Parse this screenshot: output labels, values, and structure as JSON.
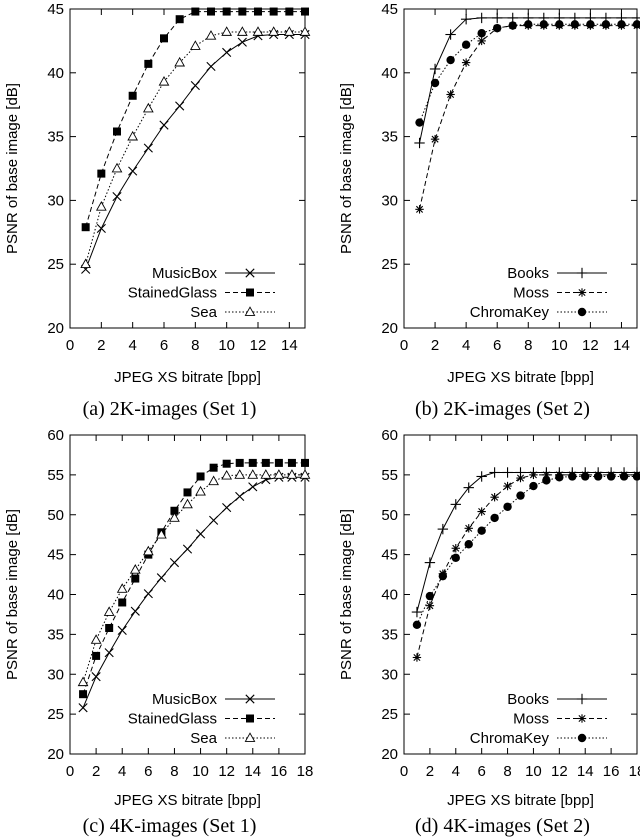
{
  "chart_data": [
    {
      "type": "line",
      "caption": "(a) 2K-images (Set 1)",
      "xlabel": "JPEG XS bitrate [bpp]",
      "ylabel": "PSNR of base image [dB]",
      "xlim": [
        0,
        15
      ],
      "ylim": [
        20,
        45
      ],
      "xticks": [
        0,
        2,
        4,
        6,
        8,
        10,
        12,
        14
      ],
      "yticks": [
        20,
        25,
        30,
        35,
        40,
        45
      ],
      "legend": "bottom-right",
      "series": [
        {
          "name": "MusicBox",
          "marker": "x",
          "dash": "solid",
          "x": [
            1,
            2,
            3,
            4,
            5,
            6,
            7,
            8,
            9,
            10,
            11,
            12,
            13,
            14,
            15
          ],
          "y": [
            24.6,
            27.8,
            30.3,
            32.3,
            34.1,
            35.9,
            37.4,
            39.0,
            40.5,
            41.6,
            42.4,
            42.9,
            43.0,
            43.0,
            43.0
          ]
        },
        {
          "name": "StainedGlass",
          "marker": "square",
          "dash": "dashed",
          "x": [
            1,
            2,
            3,
            4,
            5,
            6,
            7,
            8,
            9,
            10,
            11,
            12,
            13,
            14,
            15
          ],
          "y": [
            27.9,
            32.1,
            35.4,
            38.2,
            40.7,
            42.7,
            44.2,
            44.8,
            44.8,
            44.8,
            44.8,
            44.8,
            44.8,
            44.8,
            44.8
          ]
        },
        {
          "name": "Sea",
          "marker": "triangle",
          "dash": "dotted",
          "x": [
            1,
            2,
            3,
            4,
            5,
            6,
            7,
            8,
            9,
            10,
            11,
            12,
            13,
            14,
            15
          ],
          "y": [
            25.0,
            29.5,
            32.5,
            35.0,
            37.2,
            39.3,
            40.8,
            42.1,
            42.9,
            43.2,
            43.2,
            43.2,
            43.2,
            43.2,
            43.2
          ]
        }
      ]
    },
    {
      "type": "line",
      "caption": "(b) 2K-images (Set 2)",
      "xlabel": "JPEG XS bitrate [bpp]",
      "ylabel": "PSNR of base image [dB]",
      "xlim": [
        0,
        15
      ],
      "ylim": [
        20,
        45
      ],
      "xticks": [
        0,
        2,
        4,
        6,
        8,
        10,
        12,
        14
      ],
      "yticks": [
        20,
        25,
        30,
        35,
        40,
        45
      ],
      "legend": "bottom-right",
      "series": [
        {
          "name": "Books",
          "marker": "plus",
          "dash": "solid",
          "x": [
            1,
            2,
            3,
            4,
            5,
            6,
            7,
            8,
            9,
            10,
            11,
            12,
            13,
            14,
            15
          ],
          "y": [
            34.5,
            40.3,
            43.0,
            44.2,
            44.3,
            44.3,
            44.3,
            44.3,
            44.3,
            44.3,
            44.3,
            44.3,
            44.3,
            44.3,
            44.3
          ]
        },
        {
          "name": "Moss",
          "marker": "asterisk",
          "dash": "dashed",
          "x": [
            1,
            2,
            3,
            4,
            5,
            6,
            7,
            8,
            9,
            10,
            11,
            12,
            13,
            14,
            15
          ],
          "y": [
            29.3,
            34.8,
            38.3,
            40.8,
            42.5,
            43.5,
            43.7,
            43.7,
            43.7,
            43.7,
            43.7,
            43.7,
            43.7,
            43.7,
            43.7
          ]
        },
        {
          "name": "ChromaKey",
          "marker": "circle",
          "dash": "dotted",
          "x": [
            1,
            2,
            3,
            4,
            5,
            6,
            7,
            8,
            9,
            10,
            11,
            12,
            13,
            14,
            15
          ],
          "y": [
            36.1,
            39.2,
            41.0,
            42.2,
            43.1,
            43.5,
            43.7,
            43.8,
            43.8,
            43.8,
            43.8,
            43.8,
            43.8,
            43.8,
            43.8
          ]
        }
      ]
    },
    {
      "type": "line",
      "caption": "(c) 4K-images (Set 1)",
      "xlabel": "JPEG XS bitrate [bpp]",
      "ylabel": "PSNR of base image [dB]",
      "xlim": [
        0,
        18
      ],
      "ylim": [
        20,
        60
      ],
      "xticks": [
        0,
        2,
        4,
        6,
        8,
        10,
        12,
        14,
        16,
        18
      ],
      "yticks": [
        20,
        25,
        30,
        35,
        40,
        45,
        50,
        55,
        60
      ],
      "legend": "bottom-right",
      "series": [
        {
          "name": "MusicBox",
          "marker": "x",
          "dash": "solid",
          "x": [
            1,
            2,
            3,
            4,
            5,
            6,
            7,
            8,
            9,
            10,
            11,
            12,
            13,
            14,
            15,
            16,
            17,
            18
          ],
          "y": [
            25.8,
            29.7,
            32.7,
            35.5,
            37.9,
            40.1,
            42.1,
            44.0,
            45.7,
            47.6,
            49.3,
            50.9,
            52.3,
            53.5,
            54.4,
            54.7,
            54.7,
            54.7
          ]
        },
        {
          "name": "StainedGlass",
          "marker": "square",
          "dash": "dashed",
          "x": [
            1,
            2,
            3,
            4,
            5,
            6,
            7,
            8,
            9,
            10,
            11,
            12,
            13,
            14,
            15,
            16,
            17,
            18
          ],
          "y": [
            27.5,
            32.3,
            35.8,
            39.0,
            42.0,
            45.0,
            47.8,
            50.5,
            52.8,
            54.8,
            55.9,
            56.4,
            56.5,
            56.5,
            56.5,
            56.5,
            56.5,
            56.5
          ]
        },
        {
          "name": "Sea",
          "marker": "triangle",
          "dash": "dotted",
          "x": [
            1,
            2,
            3,
            4,
            5,
            6,
            7,
            8,
            9,
            10,
            11,
            12,
            13,
            14,
            15,
            16,
            17,
            18
          ],
          "y": [
            29.0,
            34.3,
            37.8,
            40.7,
            43.1,
            45.4,
            47.5,
            49.6,
            51.3,
            52.9,
            54.2,
            54.9,
            55.0,
            55.0,
            55.0,
            55.0,
            55.0,
            55.0
          ]
        }
      ]
    },
    {
      "type": "line",
      "caption": "(d) 4K-images (Set 2)",
      "xlabel": "JPEG XS bitrate [bpp]",
      "ylabel": "PSNR of base image [dB]",
      "xlim": [
        0,
        18
      ],
      "ylim": [
        20,
        60
      ],
      "xticks": [
        0,
        2,
        4,
        6,
        8,
        10,
        12,
        14,
        16,
        18
      ],
      "yticks": [
        20,
        25,
        30,
        35,
        40,
        45,
        50,
        55,
        60
      ],
      "legend": "bottom-right",
      "series": [
        {
          "name": "Books",
          "marker": "plus",
          "dash": "solid",
          "x": [
            1,
            2,
            3,
            4,
            5,
            6,
            7,
            8,
            9,
            10,
            11,
            12,
            13,
            14,
            15,
            16,
            17,
            18
          ],
          "y": [
            37.8,
            44.0,
            48.2,
            51.3,
            53.4,
            54.8,
            55.3,
            55.3,
            55.3,
            55.3,
            55.3,
            55.3,
            55.3,
            55.3,
            55.3,
            55.3,
            55.3,
            55.3
          ]
        },
        {
          "name": "Moss",
          "marker": "asterisk",
          "dash": "dashed",
          "x": [
            1,
            2,
            3,
            4,
            5,
            6,
            7,
            8,
            9,
            10,
            11,
            12,
            13,
            14,
            15,
            16,
            17,
            18
          ],
          "y": [
            32.1,
            38.6,
            42.6,
            45.8,
            48.3,
            50.4,
            52.2,
            53.6,
            54.6,
            55.0,
            55.0,
            55.0,
            55.0,
            55.0,
            55.0,
            55.0,
            55.0,
            55.0
          ]
        },
        {
          "name": "ChromaKey",
          "marker": "circle",
          "dash": "dotted",
          "x": [
            1,
            2,
            3,
            4,
            5,
            6,
            7,
            8,
            9,
            10,
            11,
            12,
            13,
            14,
            15,
            16,
            17,
            18
          ],
          "y": [
            36.2,
            39.8,
            42.3,
            44.6,
            46.3,
            48.0,
            49.6,
            51.0,
            52.4,
            53.6,
            54.3,
            54.7,
            54.8,
            54.8,
            54.8,
            54.8,
            54.8,
            54.8
          ]
        }
      ]
    }
  ]
}
